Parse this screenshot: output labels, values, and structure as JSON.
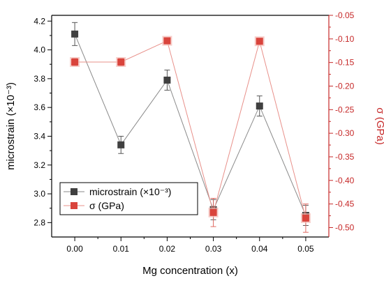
{
  "chart_data": {
    "type": "line",
    "xlabel": "Mg concentration (x)",
    "ylabel_left": "microstrain (×10⁻³)",
    "ylabel_right": "σ (GPa)",
    "xlim": [
      -0.005,
      0.055
    ],
    "ylim_left": [
      2.7,
      4.24
    ],
    "ylim_right": [
      -0.52,
      -0.05
    ],
    "x_ticks": [
      "0.00",
      "0.01",
      "0.02",
      "0.03",
      "0.04",
      "0.05"
    ],
    "y_left_ticks": [
      "2.8",
      "3.0",
      "3.2",
      "3.4",
      "3.6",
      "3.8",
      "4.0",
      "4.2"
    ],
    "y_right_ticks": [
      "-0.05",
      "-0.10",
      "-0.15",
      "-0.20",
      "-0.25",
      "-0.30",
      "-0.35",
      "-0.40",
      "-0.45",
      "-0.50"
    ],
    "legend_position": "bottom-left",
    "grid": false,
    "series": [
      {
        "name": "microstrain (×10⁻³)",
        "axis": "left",
        "color": "#404040",
        "marker": "square",
        "x": [
          0.0,
          0.01,
          0.02,
          0.03,
          0.04,
          0.05
        ],
        "y": [
          4.11,
          3.34,
          3.79,
          2.89,
          3.61,
          2.85
        ],
        "err": [
          0.08,
          0.06,
          0.07,
          0.07,
          0.07,
          0.07
        ]
      },
      {
        "name": "σ (GPa)",
        "axis": "right",
        "color": "#d9443c",
        "marker": "square",
        "x": [
          0.0,
          0.01,
          0.02,
          0.03,
          0.04,
          0.05
        ],
        "y": [
          -0.149,
          -0.149,
          -0.104,
          -0.468,
          -0.105,
          -0.48
        ],
        "err": [
          0.008,
          0.008,
          0.006,
          0.03,
          0.006,
          0.03
        ]
      }
    ]
  }
}
